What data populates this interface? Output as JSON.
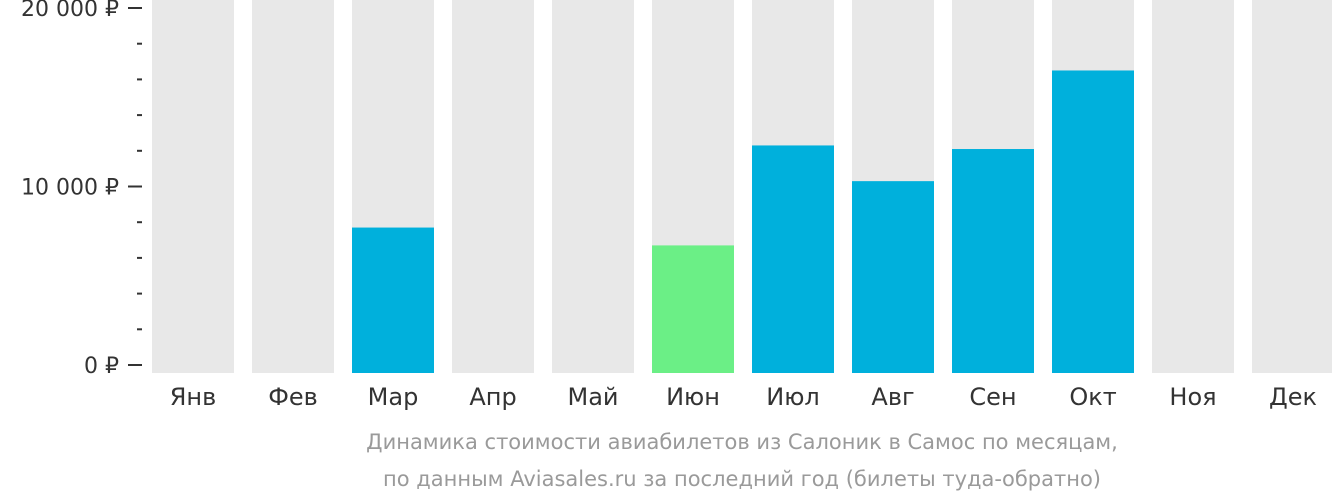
{
  "chart_data": {
    "type": "bar",
    "categories": [
      "Янв",
      "Фев",
      "Мар",
      "Апр",
      "Май",
      "Июн",
      "Июл",
      "Авг",
      "Сен",
      "Окт",
      "Ноя",
      "Дек"
    ],
    "values": [
      null,
      null,
      7700,
      null,
      null,
      6700,
      12300,
      10300,
      12100,
      16500,
      null,
      null
    ],
    "y_tick_labels": [
      "20 000 ₽",
      "10 000 ₽",
      "0 ₽"
    ],
    "y_ticks": [
      20000,
      10000,
      0
    ],
    "ylim": [
      0,
      20000
    ],
    "minor_tick_step": 2000,
    "title": "",
    "xlabel": "",
    "ylabel": "",
    "highlight_category": "Июн",
    "colors": {
      "bar": "#00b0dc",
      "highlight": "#6bef86",
      "background_bar": "#e8e8e8",
      "axis": "#333333"
    }
  },
  "caption": {
    "line1": "Динамика стоимости авиабилетов из Салоник в Самос по месяцам,",
    "line2": "по данным Aviasales.ru за последний год (билеты туда-обратно)"
  }
}
